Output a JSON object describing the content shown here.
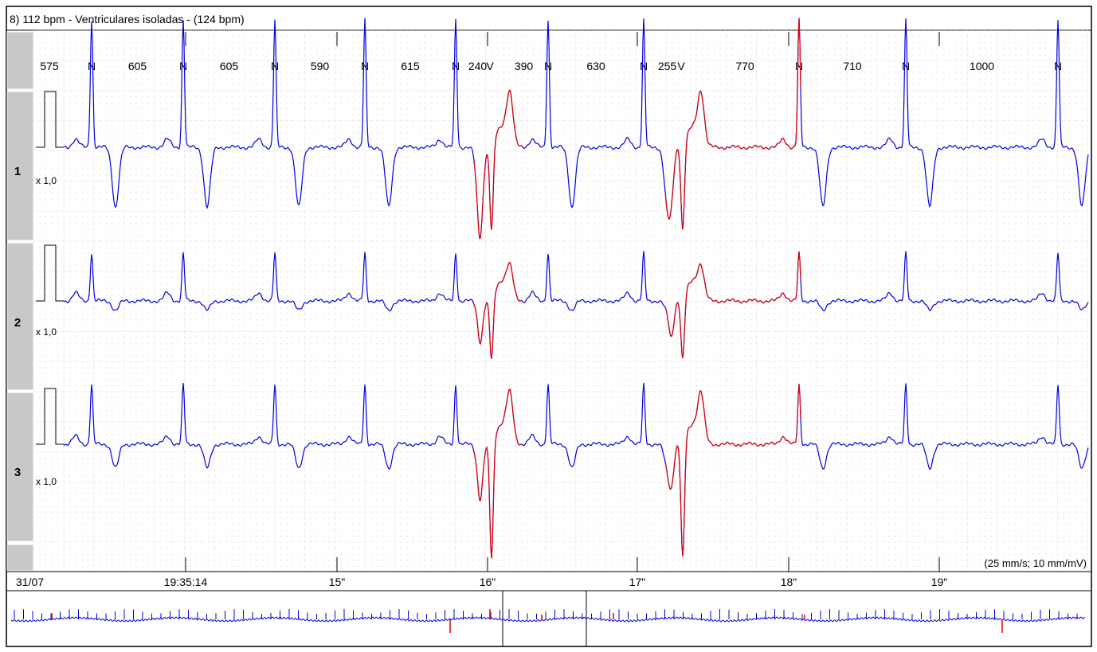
{
  "header": {
    "title": "8) 112 bpm - Ventriculares isoladas - (124 bpm)"
  },
  "beats": {
    "intervals": [
      "575",
      "605",
      "605",
      "590",
      "615",
      "240",
      "390",
      "630",
      "255",
      "770",
      "710",
      "1000"
    ],
    "labels": [
      "N",
      "N",
      "N",
      "N",
      "N",
      "V",
      "N",
      "N",
      "V",
      "N",
      "N",
      "N"
    ]
  },
  "channels": [
    {
      "label": "1",
      "gain": "x 1,0"
    },
    {
      "label": "2",
      "gain": "x 1,0"
    },
    {
      "label": "3",
      "gain": "x 1,0"
    }
  ],
  "time_axis": {
    "date": "31/07",
    "ticks": [
      "19:35:14",
      "15\"",
      "16\"",
      "17\"",
      "18\"",
      "19\""
    ]
  },
  "scale_note": "(25 mm/s; 10 mm/mV)"
}
